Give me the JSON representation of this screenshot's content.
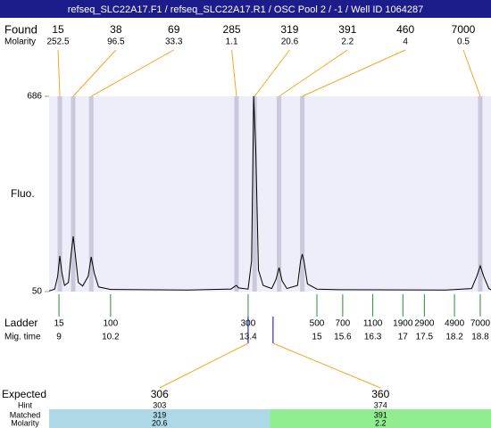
{
  "header": {
    "title": "refseq_SLC22A17.F1 / refseq_SLC22A17.R1 / OSC Pool 2 / -1 / Well ID 1064287"
  },
  "chart_data": {
    "type": "line",
    "ylabel": "Fluo.",
    "xlim": [
      8.77,
      19.05
    ],
    "ylim": [
      50,
      686
    ],
    "yticks": [
      50,
      686
    ],
    "x": [
      8.77,
      8.9,
      8.97,
      9.02,
      9.07,
      9.13,
      9.22,
      9.28,
      9.33,
      9.38,
      9.45,
      9.55,
      9.68,
      9.75,
      9.82,
      9.92,
      10.2,
      12.0,
      13.0,
      13.1,
      13.13,
      13.18,
      13.4,
      13.48,
      13.53,
      13.58,
      13.64,
      13.75,
      13.95,
      14.05,
      14.12,
      14.19,
      14.3,
      14.55,
      14.62,
      14.66,
      14.7,
      14.78,
      15.0,
      15.5,
      18.0,
      18.6,
      18.72,
      18.8,
      18.88,
      19.0,
      19.05
    ],
    "series": [
      {
        "color": "#000000",
        "values": [
          52,
          58,
          100,
          166,
          110,
          70,
          80,
          170,
          230,
          170,
          80,
          68,
          100,
          163,
          110,
          65,
          57,
          55,
          58,
          68,
          70,
          62,
          58,
          150,
          686,
          500,
          120,
          70,
          60,
          90,
          128,
          85,
          60,
          70,
          150,
          172,
          150,
          75,
          58,
          56,
          55,
          60,
          100,
          134,
          100,
          60,
          56
        ]
      }
    ],
    "found": {
      "label": "Found",
      "molarity_label": "Molarity",
      "color": "#f5a623",
      "band_color": "#c9c9da",
      "x": [
        9.02,
        9.33,
        9.75,
        13.13,
        13.55,
        14.12,
        14.66,
        18.8
      ],
      "sizes": [
        15,
        38,
        69,
        285,
        319,
        391,
        460,
        7000
      ],
      "molarity": [
        252.5,
        96.5,
        33.3,
        1.1,
        20.6,
        2.2,
        4,
        0.5
      ]
    },
    "ladder": {
      "label": "Ladder",
      "time_label": "Mig. time",
      "color": "#2e8b2e",
      "sizes": [
        15,
        100,
        300,
        500,
        700,
        1100,
        1900,
        2900,
        4900,
        7000
      ],
      "mig_times": [
        9,
        10.2,
        13.4,
        15,
        15.6,
        16.3,
        17,
        17.5,
        18.2,
        18.8
      ]
    },
    "expected": {
      "x": [
        13.4,
        13.98
      ],
      "color": "#0000cc"
    }
  },
  "results": {
    "labels": [
      "Expected",
      "Hint",
      "Matched",
      "Molarity"
    ],
    "columns": [
      {
        "expected": 306,
        "hint": 303,
        "matched": 319,
        "molarity": 20.6,
        "color": "#add8e6"
      },
      {
        "expected": 360,
        "hint": 374,
        "matched": 391,
        "molarity": 2.2,
        "color": "#90ee90"
      }
    ]
  }
}
